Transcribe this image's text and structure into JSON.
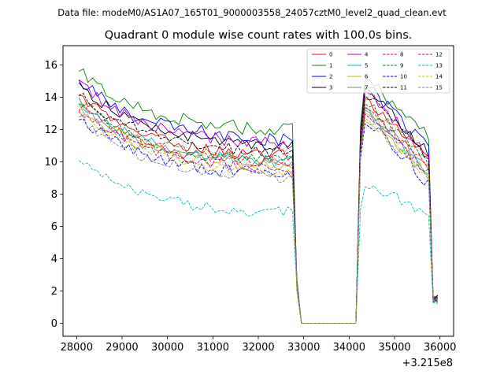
{
  "chart_data": {
    "type": "line",
    "suptitle": "Data file: modeM0/AS1A07_165T01_9000003558_24057cztM0_level2_quad_clean.evt",
    "title": "Quadrant 0 module wise count rates with 100.0s bins.",
    "xlabel": "",
    "ylabel": "",
    "x_offset_label": "+3.215e8",
    "xlim": [
      27700,
      36300
    ],
    "ylim": [
      -0.8,
      17.2
    ],
    "x_ticks": [
      28000,
      29000,
      30000,
      31000,
      32000,
      33000,
      34000,
      35000,
      36000
    ],
    "x_tick_labels": [
      "28000",
      "29000",
      "30000",
      "31000",
      "32000",
      "33000",
      "34000",
      "35000",
      "36000"
    ],
    "y_ticks": [
      0,
      2,
      4,
      6,
      8,
      10,
      12,
      14,
      16
    ],
    "y_tick_labels": [
      "0",
      "2",
      "4",
      "6",
      "8",
      "10",
      "12",
      "14",
      "16"
    ],
    "legend_position": "top-right",
    "gap": {
      "start": 33000,
      "end": 34200,
      "value": 0
    },
    "x_start": 28050,
    "bin": 100,
    "x_end": 35950,
    "series": [
      {
        "name": "0",
        "color": "#ff0000",
        "dash": "solid",
        "start": 14.2,
        "pre_end": 10.2,
        "peak": 14.0,
        "end": 10.0,
        "noise": 0.35
      },
      {
        "name": "1",
        "color": "#008000",
        "dash": "solid",
        "start": 15.6,
        "pre_end": 11.8,
        "peak": 15.2,
        "end": 11.5,
        "noise": 0.45
      },
      {
        "name": "2",
        "color": "#0000ff",
        "dash": "solid",
        "start": 15.0,
        "pre_end": 11.2,
        "peak": 14.8,
        "end": 10.6,
        "noise": 0.45
      },
      {
        "name": "3",
        "color": "#000000",
        "dash": "solid",
        "start": 14.8,
        "pre_end": 10.8,
        "peak": 14.7,
        "end": 10.2,
        "noise": 0.35
      },
      {
        "name": "4",
        "color": "#bf00bf",
        "dash": "solid",
        "start": 14.9,
        "pre_end": 10.9,
        "peak": 14.5,
        "end": 10.0,
        "noise": 0.4
      },
      {
        "name": "5",
        "color": "#00bfbf",
        "dash": "solid",
        "start": 13.8,
        "pre_end": 9.8,
        "peak": 13.5,
        "end": 9.0,
        "noise": 0.35
      },
      {
        "name": "6",
        "color": "#bfbf00",
        "dash": "solid",
        "start": 13.4,
        "pre_end": 9.5,
        "peak": 13.2,
        "end": 8.8,
        "noise": 0.35
      },
      {
        "name": "7",
        "color": "#808080",
        "dash": "solid",
        "start": 13.6,
        "pre_end": 9.6,
        "peak": 13.4,
        "end": 9.4,
        "noise": 0.4
      },
      {
        "name": "8",
        "color": "#ff0000",
        "dash": "dashed",
        "start": 13.5,
        "pre_end": 9.8,
        "peak": 13.6,
        "end": 9.2,
        "noise": 0.35
      },
      {
        "name": "9",
        "color": "#008000",
        "dash": "dashed",
        "start": 13.9,
        "pre_end": 9.9,
        "peak": 13.8,
        "end": 9.6,
        "noise": 0.35
      },
      {
        "name": "10",
        "color": "#0000ff",
        "dash": "dashed",
        "start": 12.9,
        "pre_end": 9.0,
        "peak": 12.6,
        "end": 8.4,
        "noise": 0.4
      },
      {
        "name": "11",
        "color": "#000000",
        "dash": "dashed",
        "start": 14.3,
        "pre_end": 10.4,
        "peak": 14.3,
        "end": 10.0,
        "noise": 0.35
      },
      {
        "name": "12",
        "color": "#bf00bf",
        "dash": "dashed",
        "start": 13.3,
        "pre_end": 9.4,
        "peak": 13.2,
        "end": 9.0,
        "noise": 0.35
      },
      {
        "name": "13",
        "color": "#00bfbf",
        "dash": "dashed",
        "start": 10.2,
        "pre_end": 6.7,
        "peak": 8.7,
        "end": 6.6,
        "noise": 0.35
      },
      {
        "name": "14",
        "color": "#bfbf00",
        "dash": "dashed",
        "start": 13.1,
        "pre_end": 9.2,
        "peak": 13.0,
        "end": 8.7,
        "noise": 0.35
      },
      {
        "name": "15",
        "color": "#808080",
        "dash": "dashed",
        "start": 12.8,
        "pre_end": 8.9,
        "peak": 12.9,
        "end": 8.6,
        "noise": 0.4
      }
    ]
  }
}
